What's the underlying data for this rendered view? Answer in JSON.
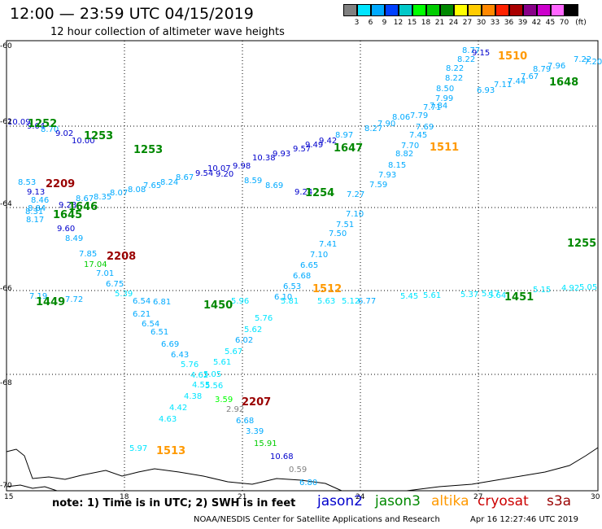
{
  "title": "12:00 — 23:59 UTC 04/15/2019",
  "subtitle": "12 hour collection of altimeter wave heights",
  "colorbar": {
    "unit": "(ft)",
    "labels": [
      "3",
      "6",
      "9",
      "12",
      "15",
      "18",
      "21",
      "24",
      "27",
      "30",
      "33",
      "36",
      "39",
      "42",
      "45",
      "70"
    ],
    "colors": [
      "#808080",
      "#00e5ff",
      "#00aaff",
      "#0040ff",
      "#00c8c8",
      "#00ff00",
      "#00cc00",
      "#008800",
      "#ffff00",
      "#ffcc00",
      "#ff8800",
      "#ff2200",
      "#aa0000",
      "#880088",
      "#cc00cc",
      "#ff66ff",
      "#000000"
    ]
  },
  "axes": {
    "lat_labels": [
      "-60",
      "-62",
      "-64",
      "-66",
      "-68",
      "-70"
    ],
    "lon_labels": [
      "15",
      "18",
      "21",
      "24",
      "27",
      "30"
    ]
  },
  "note": "note: 1) Time is in UTC; 2) SWH is in feet",
  "satellites": [
    {
      "name": "jason2",
      "color": "#0000cc"
    },
    {
      "name": "jason3",
      "color": "#008800"
    },
    {
      "name": "altika",
      "color": "#ff9900"
    },
    {
      "name": "cryosat",
      "color": "#cc0000"
    },
    {
      "name": "s3a",
      "color": "#990000"
    }
  ],
  "credit": "NOAA/NESDIS Center for Satellite Applications and Research",
  "timestamp": "Apr 16 12:27:46 UTC 2019",
  "time_labels": [
    {
      "text": "1252",
      "color": "#008800"
    },
    {
      "text": "1253",
      "color": "#008800"
    },
    {
      "text": "1253",
      "color": "#008800"
    },
    {
      "text": "2209",
      "color": "#990000"
    },
    {
      "text": "1646",
      "color": "#008800"
    },
    {
      "text": "1645",
      "color": "#008800"
    },
    {
      "text": "2208",
      "color": "#990000"
    },
    {
      "text": "1449",
      "color": "#008800"
    },
    {
      "text": "1450",
      "color": "#008800"
    },
    {
      "text": "2207",
      "color": "#990000"
    },
    {
      "text": "1513",
      "color": "#ff9900"
    },
    {
      "text": "1512",
      "color": "#ff9900"
    },
    {
      "text": "1511",
      "color": "#ff9900"
    },
    {
      "text": "1510",
      "color": "#ff9900"
    },
    {
      "text": "1647",
      "color": "#008800"
    },
    {
      "text": "1648",
      "color": "#008800"
    },
    {
      "text": "1254",
      "color": "#008800"
    },
    {
      "text": "1255",
      "color": "#008800"
    },
    {
      "text": "1451",
      "color": "#008800"
    }
  ],
  "wave_heights": [
    {
      "v": "10.09",
      "c": "#0000cc"
    },
    {
      "v": "9.04",
      "c": "#0000cc"
    },
    {
      "v": "8.70",
      "c": "#00aaff"
    },
    {
      "v": "9.02",
      "c": "#0000cc"
    },
    {
      "v": "10.00",
      "c": "#0000cc"
    },
    {
      "v": "8.53",
      "c": "#00aaff"
    },
    {
      "v": "9.13",
      "c": "#0000cc"
    },
    {
      "v": "8.46",
      "c": "#00aaff"
    },
    {
      "v": "8.84",
      "c": "#00aaff"
    },
    {
      "v": "9.23",
      "c": "#0000cc"
    },
    {
      "v": "8.31",
      "c": "#00aaff"
    },
    {
      "v": "8.17",
      "c": "#00aaff"
    },
    {
      "v": "9.60",
      "c": "#0000cc"
    },
    {
      "v": "8.49",
      "c": "#00aaff"
    },
    {
      "v": "8.67",
      "c": "#00aaff"
    },
    {
      "v": "8.35",
      "c": "#00aaff"
    },
    {
      "v": "8.07",
      "c": "#00aaff"
    },
    {
      "v": "8.08",
      "c": "#00aaff"
    },
    {
      "v": "7.65",
      "c": "#00aaff"
    },
    {
      "v": "8.24",
      "c": "#00aaff"
    },
    {
      "v": "8.67",
      "c": "#00aaff"
    },
    {
      "v": "7.85",
      "c": "#00aaff"
    },
    {
      "v": "17.04",
      "c": "#00cc00"
    },
    {
      "v": "7.01",
      "c": "#00aaff"
    },
    {
      "v": "6.75",
      "c": "#00aaff"
    },
    {
      "v": "5.39",
      "c": "#00e5ff"
    },
    {
      "v": "6.21",
      "c": "#00aaff"
    },
    {
      "v": "6.54",
      "c": "#00aaff"
    },
    {
      "v": "6.51",
      "c": "#00aaff"
    },
    {
      "v": "6.69",
      "c": "#00aaff"
    },
    {
      "v": "6.43",
      "c": "#00aaff"
    },
    {
      "v": "5.76",
      "c": "#00e5ff"
    },
    {
      "v": "4.62",
      "c": "#00e5ff"
    },
    {
      "v": "4.55",
      "c": "#00e5ff"
    },
    {
      "v": "4.38",
      "c": "#00e5ff"
    },
    {
      "v": "4.42",
      "c": "#00e5ff"
    },
    {
      "v": "4.63",
      "c": "#00e5ff"
    },
    {
      "v": "5.97",
      "c": "#00e5ff"
    },
    {
      "v": "5.61",
      "c": "#00e5ff"
    },
    {
      "v": "5.05",
      "c": "#00e5ff"
    },
    {
      "v": "5.56",
      "c": "#00e5ff"
    },
    {
      "v": "3.59",
      "c": "#00ff00"
    },
    {
      "v": "2.92",
      "c": "#808080"
    },
    {
      "v": "6.68",
      "c": "#00aaff"
    },
    {
      "v": "3.39",
      "c": "#00aaff"
    },
    {
      "v": "15.91",
      "c": "#00cc00"
    },
    {
      "v": "10.68",
      "c": "#0000cc"
    },
    {
      "v": "0.59",
      "c": "#808080"
    },
    {
      "v": "6.80",
      "c": "#00aaff"
    },
    {
      "v": "5.67",
      "c": "#00e5ff"
    },
    {
      "v": "6.02",
      "c": "#00aaff"
    },
    {
      "v": "5.62",
      "c": "#00e5ff"
    },
    {
      "v": "5.76",
      "c": "#00e5ff"
    },
    {
      "v": "6.10",
      "c": "#00aaff"
    },
    {
      "v": "6.53",
      "c": "#00aaff"
    },
    {
      "v": "6.68",
      "c": "#00aaff"
    },
    {
      "v": "6.65",
      "c": "#00aaff"
    },
    {
      "v": "7.10",
      "c": "#00aaff"
    },
    {
      "v": "7.41",
      "c": "#00aaff"
    },
    {
      "v": "7.50",
      "c": "#00aaff"
    },
    {
      "v": "7.51",
      "c": "#00aaff"
    },
    {
      "v": "7.10",
      "c": "#00aaff"
    },
    {
      "v": "7.27",
      "c": "#00aaff"
    },
    {
      "v": "7.59",
      "c": "#00aaff"
    },
    {
      "v": "7.93",
      "c": "#00aaff"
    },
    {
      "v": "8.15",
      "c": "#00aaff"
    },
    {
      "v": "8.82",
      "c": "#00aaff"
    },
    {
      "v": "7.70",
      "c": "#00aaff"
    },
    {
      "v": "7.45",
      "c": "#00aaff"
    },
    {
      "v": "7.69",
      "c": "#00aaff"
    },
    {
      "v": "7.79",
      "c": "#00aaff"
    },
    {
      "v": "7.71",
      "c": "#00aaff"
    },
    {
      "v": "7.84",
      "c": "#00aaff"
    },
    {
      "v": "7.99",
      "c": "#00aaff"
    },
    {
      "v": "8.50",
      "c": "#00aaff"
    },
    {
      "v": "8.22",
      "c": "#00aaff"
    },
    {
      "v": "8.22",
      "c": "#00aaff"
    },
    {
      "v": "8.22",
      "c": "#00aaff"
    },
    {
      "v": "8.77",
      "c": "#00aaff"
    },
    {
      "v": "9.15",
      "c": "#0000cc"
    },
    {
      "v": "6.93",
      "c": "#00aaff"
    },
    {
      "v": "7.11",
      "c": "#00aaff"
    },
    {
      "v": "7.44",
      "c": "#00aaff"
    },
    {
      "v": "7.67",
      "c": "#00aaff"
    },
    {
      "v": "8.79",
      "c": "#00aaff"
    },
    {
      "v": "7.96",
      "c": "#00aaff"
    },
    {
      "v": "7.22",
      "c": "#00aaff"
    },
    {
      "v": "7.20",
      "c": "#00aaff"
    },
    {
      "v": "8.06",
      "c": "#00aaff"
    },
    {
      "v": "7.90",
      "c": "#00aaff"
    },
    {
      "v": "8.27",
      "c": "#00aaff"
    },
    {
      "v": "9.57",
      "c": "#0000cc"
    },
    {
      "v": "8.97",
      "c": "#00aaff"
    },
    {
      "v": "9.49",
      "c": "#0000cc"
    },
    {
      "v": "9.42",
      "c": "#0000cc"
    },
    {
      "v": "9.93",
      "c": "#0000cc"
    },
    {
      "v": "10.38",
      "c": "#0000cc"
    },
    {
      "v": "9.98",
      "c": "#0000cc"
    },
    {
      "v": "9.20",
      "c": "#0000cc"
    },
    {
      "v": "10.07",
      "c": "#0000cc"
    },
    {
      "v": "9.54",
      "c": "#0000cc"
    },
    {
      "v": "8.59",
      "c": "#00aaff"
    },
    {
      "v": "8.69",
      "c": "#00aaff"
    },
    {
      "v": "9.24",
      "c": "#0000cc"
    },
    {
      "v": "7.19",
      "c": "#00aaff"
    },
    {
      "v": "7.72",
      "c": "#00aaff"
    },
    {
      "v": "6.54",
      "c": "#00aaff"
    },
    {
      "v": "6.81",
      "c": "#00aaff"
    },
    {
      "v": "5.96",
      "c": "#00e5ff"
    },
    {
      "v": "5.81",
      "c": "#00e5ff"
    },
    {
      "v": "5.63",
      "c": "#00e5ff"
    },
    {
      "v": "5.12",
      "c": "#00e5ff"
    },
    {
      "v": "6.77",
      "c": "#00aaff"
    },
    {
      "v": "5.45",
      "c": "#00e5ff"
    },
    {
      "v": "5.61",
      "c": "#00e5ff"
    },
    {
      "v": "5.37",
      "c": "#00e5ff"
    },
    {
      "v": "5.17",
      "c": "#00e5ff"
    },
    {
      "v": "5.64",
      "c": "#00e5ff"
    },
    {
      "v": "5.15",
      "c": "#00e5ff"
    },
    {
      "v": "4.92",
      "c": "#00e5ff"
    },
    {
      "v": "5.05",
      "c": "#00e5ff"
    }
  ]
}
